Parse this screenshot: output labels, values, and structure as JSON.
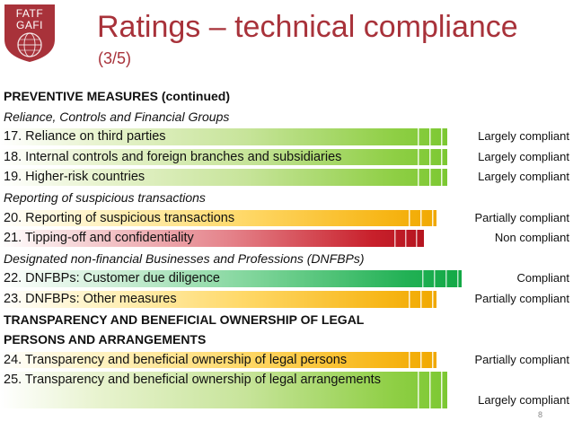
{
  "logo": {
    "line1": "FATF",
    "line2": "GAFI"
  },
  "title": "Ratings – technical compliance",
  "subtitle": "(3/5)",
  "rows": [
    {
      "kind": "header",
      "text": "PREVENTIVE MEASURES (continued)",
      "rating": ""
    },
    {
      "kind": "subhead",
      "text": "Reliance, Controls and Financial Groups",
      "rating": ""
    },
    {
      "kind": "item",
      "text": "17. Reliance on third parties",
      "rating": "Largely compliant",
      "level": "largely"
    },
    {
      "kind": "item",
      "text": "18. Internal controls and foreign branches and subsidiaries",
      "rating": "Largely compliant",
      "level": "largely"
    },
    {
      "kind": "item",
      "text": "19. Higher-risk countries",
      "rating": "Largely compliant",
      "level": "largely"
    },
    {
      "kind": "subhead",
      "text": "Reporting of suspicious transactions",
      "rating": ""
    },
    {
      "kind": "item",
      "text": "20. Reporting of suspicious transactions",
      "rating": "Partially compliant",
      "level": "partially"
    },
    {
      "kind": "item",
      "text": "21. Tipping-off and confidentiality",
      "rating": "Non compliant",
      "level": "non"
    },
    {
      "kind": "subhead",
      "text": "Designated non-financial Businesses and Professions (DNFBPs)",
      "rating": ""
    },
    {
      "kind": "item",
      "text": "22. DNFBPs: Customer due diligence",
      "rating": "Compliant",
      "level": "compliant"
    },
    {
      "kind": "item",
      "text": "23. DNFBPs: Other measures",
      "rating": "Partially compliant",
      "level": "partially"
    },
    {
      "kind": "header",
      "text": "TRANSPARENCY AND BENEFICIAL OWNERSHIP OF LEGAL",
      "rating": ""
    },
    {
      "kind": "header",
      "text": "PERSONS AND ARRANGEMENTS",
      "rating": ""
    },
    {
      "kind": "item",
      "text": "24. Transparency and beneficial ownership of legal persons",
      "rating": "Partially compliant",
      "level": "partially"
    },
    {
      "kind": "item-tall",
      "text": "25. Transparency and beneficial ownership of legal arrangements",
      "rating": "Largely compliant",
      "level": "largely"
    }
  ],
  "page_number": "8",
  "colors": {
    "title": "#a8323a",
    "largely": "#7cc832",
    "partially": "#f0a800",
    "non": "#b51520",
    "compliant": "#12a845"
  }
}
